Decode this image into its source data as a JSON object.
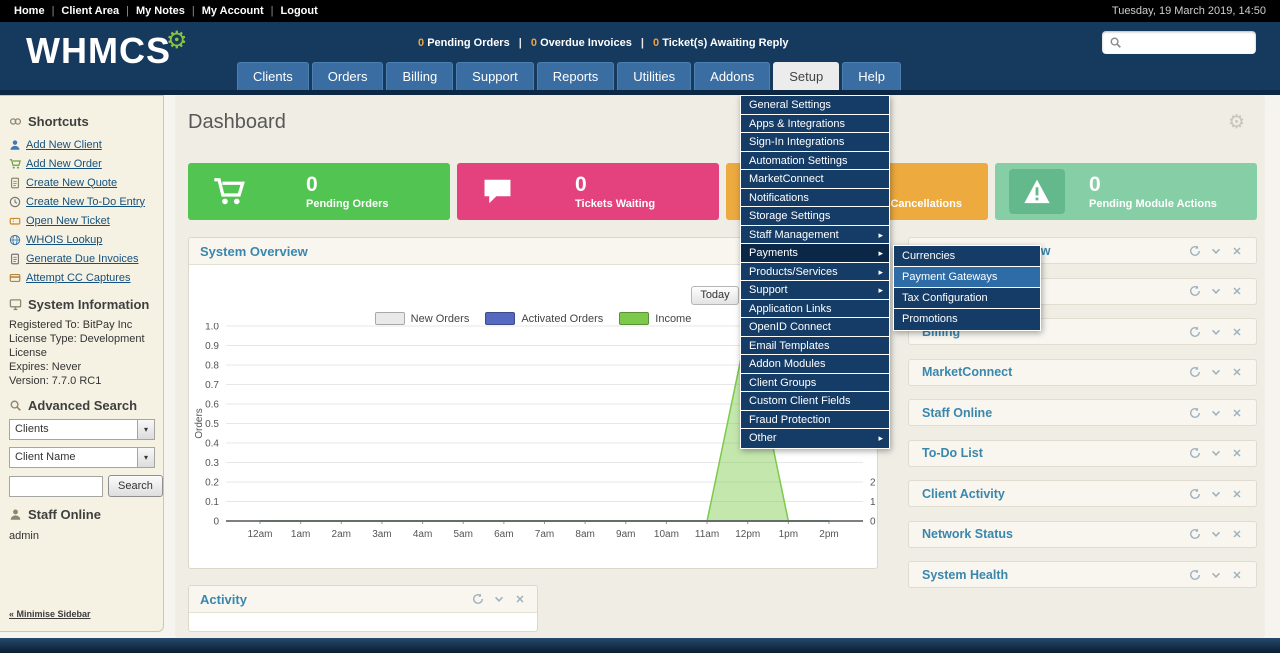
{
  "topbar": {
    "links": [
      "Home",
      "Client Area",
      "My Notes",
      "My Account",
      "Logout"
    ],
    "datetime": "Tuesday, 19 March 2019, 14:50"
  },
  "header": {
    "logo_text": "WHMCS",
    "stats_summary": [
      {
        "value": "0",
        "label": "Pending Orders"
      },
      {
        "value": "0",
        "label": "Overdue Invoices"
      },
      {
        "value": "0",
        "label": "Ticket(s) Awaiting Reply"
      }
    ],
    "search_value": ""
  },
  "nav": {
    "tabs": [
      {
        "label": "Clients",
        "active": false
      },
      {
        "label": "Orders",
        "active": false
      },
      {
        "label": "Billing",
        "active": false
      },
      {
        "label": "Support",
        "active": false
      },
      {
        "label": "Reports",
        "active": false
      },
      {
        "label": "Utilities",
        "active": false
      },
      {
        "label": "Addons",
        "active": false
      },
      {
        "label": "Setup",
        "active": true
      },
      {
        "label": "Help",
        "active": false
      }
    ]
  },
  "setup_menu": {
    "items": [
      {
        "label": "General Settings",
        "submenu": false,
        "highlighted": false
      },
      {
        "label": "Apps & Integrations",
        "submenu": false,
        "highlighted": false
      },
      {
        "label": "Sign-In Integrations",
        "submenu": false,
        "highlighted": false
      },
      {
        "label": "Automation Settings",
        "submenu": false,
        "highlighted": false
      },
      {
        "label": "MarketConnect",
        "submenu": false,
        "highlighted": false
      },
      {
        "label": "Notifications",
        "submenu": false,
        "highlighted": false
      },
      {
        "label": "Storage Settings",
        "submenu": false,
        "highlighted": false
      },
      {
        "label": "Staff Management",
        "submenu": true,
        "highlighted": false
      },
      {
        "label": "Payments",
        "submenu": true,
        "highlighted": true
      },
      {
        "label": "Products/Services",
        "submenu": true,
        "highlighted": false
      },
      {
        "label": "Support",
        "submenu": true,
        "highlighted": false
      },
      {
        "label": "Application Links",
        "submenu": false,
        "highlighted": false
      },
      {
        "label": "OpenID Connect",
        "submenu": false,
        "highlighted": false
      },
      {
        "label": "Email Templates",
        "submenu": false,
        "highlighted": false
      },
      {
        "label": "Addon Modules",
        "submenu": false,
        "highlighted": false
      },
      {
        "label": "Client Groups",
        "submenu": false,
        "highlighted": false
      },
      {
        "label": "Custom Client Fields",
        "submenu": false,
        "highlighted": false
      },
      {
        "label": "Fraud Protection",
        "submenu": false,
        "highlighted": false
      },
      {
        "label": "Other",
        "submenu": true,
        "highlighted": false
      }
    ],
    "payments_submenu": [
      {
        "label": "Currencies",
        "highlighted": false
      },
      {
        "label": "Payment Gateways",
        "highlighted": true
      },
      {
        "label": "Tax Configuration",
        "highlighted": false
      },
      {
        "label": "Promotions",
        "highlighted": false
      }
    ]
  },
  "sidebar": {
    "shortcuts": {
      "title": "Shortcuts",
      "items": [
        {
          "label": "Add New Client",
          "icon": "user-add-icon"
        },
        {
          "label": "Add New Order",
          "icon": "cart-add-icon"
        },
        {
          "label": "Create New Quote",
          "icon": "quote-page-icon"
        },
        {
          "label": "Create New To-Do Entry",
          "icon": "todo-clock-icon"
        },
        {
          "label": "Open New Ticket",
          "icon": "ticket-icon"
        },
        {
          "label": "WHOIS Lookup",
          "icon": "globe-icon"
        },
        {
          "label": "Generate Due Invoices",
          "icon": "invoice-icon"
        },
        {
          "label": "Attempt CC Captures",
          "icon": "credit-card-icon"
        }
      ]
    },
    "system_information": {
      "title": "System Information",
      "lines": [
        "Registered To: BitPay Inc",
        "License Type: Development License",
        "Expires: Never",
        "Version: 7.7.0 RC1"
      ]
    },
    "advanced_search": {
      "title": "Advanced Search",
      "select1": "Clients",
      "select2": "Client Name",
      "search_value": "",
      "search_button": "Search"
    },
    "staff_online": {
      "title": "Staff Online",
      "users": [
        "admin"
      ]
    },
    "minimise": "« Minimise Sidebar"
  },
  "main": {
    "title": "Dashboard",
    "stat_cards": [
      {
        "value": "0",
        "label": "Pending Orders",
        "icon": "cart-icon",
        "color": "#52c452"
      },
      {
        "value": "0",
        "label": "Tickets Waiting",
        "icon": "comment-icon",
        "color": "#e4427e"
      },
      {
        "value": "0",
        "label": "Pending Cancellations",
        "icon": "ban-icon",
        "color": "#ecaa3f"
      },
      {
        "value": "0",
        "label": "Pending Module Actions",
        "icon": "warning-icon",
        "color": "#86cfa6",
        "icon_bg": "#63b88c"
      }
    ],
    "system_overview": {
      "title": "System Overview",
      "today_button": "Today"
    },
    "activity": {
      "title": "Activity"
    },
    "right_panels": [
      {
        "title": "Automation Overview"
      },
      {
        "title": ""
      },
      {
        "title": "Billing"
      },
      {
        "title": "MarketConnect"
      },
      {
        "title": "Staff Online"
      },
      {
        "title": "To-Do List"
      },
      {
        "title": "Client Activity"
      },
      {
        "title": "Network Status"
      },
      {
        "title": "System Health"
      }
    ]
  },
  "chart_data": {
    "type": "area",
    "title": "System Overview",
    "x": [
      "12am",
      "1am",
      "2am",
      "3am",
      "4am",
      "5am",
      "6am",
      "7am",
      "8am",
      "9am",
      "10am",
      "11am",
      "12pm",
      "1pm",
      "2pm"
    ],
    "series": [
      {
        "name": "New Orders",
        "color": "#e9e9e9",
        "axis": "left",
        "values": [
          0,
          0,
          0,
          0,
          0,
          0,
          0,
          0,
          0,
          0,
          0,
          0,
          0,
          0,
          0
        ]
      },
      {
        "name": "Activated Orders",
        "color": "#5569c0",
        "axis": "left",
        "values": [
          0,
          0,
          0,
          0,
          0,
          0,
          0,
          0,
          0,
          0,
          0,
          0,
          0,
          0,
          0
        ]
      },
      {
        "name": "Income",
        "color": "#7dc94c",
        "axis": "right",
        "values": [
          0,
          0,
          0,
          0,
          0,
          0,
          0,
          0,
          0,
          0,
          0,
          0,
          10,
          0,
          0
        ]
      }
    ],
    "ylabel_left": "Orders",
    "ylim_left": [
      0,
      1.0
    ],
    "yticks_left": [
      0,
      0.1,
      0.2,
      0.3,
      0.4,
      0.5,
      0.6,
      0.7,
      0.8,
      0.9,
      1.0
    ],
    "ylim_right": [
      0,
      10
    ],
    "yticks_right_visible": [
      0,
      1,
      2
    ],
    "grid": true,
    "legend_position": "top",
    "range_button": "Today"
  },
  "icons": {
    "gear": "⚙",
    "submenu_arrow": "▸",
    "select_arrow": "▾"
  },
  "colors": {
    "header_navy": "#16395e",
    "menu_navy": "#153c66",
    "menu_highlight": "#0b2747",
    "submenu_highlight": "#2d6ca6",
    "panel_title": "#3a87ad",
    "sidebar_bg": "#f6f2e3",
    "content_bg": "#efede4"
  }
}
